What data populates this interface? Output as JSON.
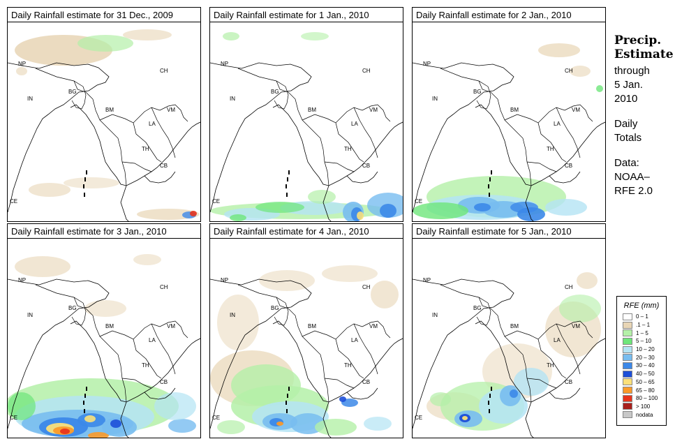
{
  "panels": [
    {
      "title": "Daily Rainfall estimate for  31 Dec., 2009"
    },
    {
      "title": "Daily Rainfall estimate for  1 Jan., 2010"
    },
    {
      "title": "Daily Rainfall estimate for  2 Jan., 2010"
    },
    {
      "title": "Daily Rainfall estimate for  3 Jan., 2010"
    },
    {
      "title": "Daily Rainfall estimate for  4 Jan., 2010"
    },
    {
      "title": "Daily Rainfall estimate for  5 Jan., 2010"
    }
  ],
  "country_labels": {
    "np": "NP",
    "ch": "CH",
    "in": "IN",
    "bg": "BG",
    "bm": "BM",
    "vm": "VM",
    "la": "LA",
    "th": "TH",
    "cb": "CB",
    "ce": "CE"
  },
  "side": {
    "title_line1": "Precip.",
    "title_line2": "Estimate",
    "through": "through",
    "date_line1": "5 Jan.",
    "date_line2": "2010",
    "daily": "Daily",
    "totals": "Totals",
    "data_label": "Data:",
    "source_line1": "NOAA–",
    "source_line2": "RFE 2.0"
  },
  "legend": {
    "title": "RFE (mm)",
    "items": [
      {
        "label": "0 – 1",
        "color": "#ffffff"
      },
      {
        "label": ".1 – 1",
        "color": "#e8d5b5"
      },
      {
        "label": "1 – 5",
        "color": "#b4f0a8"
      },
      {
        "label": "5 – 10",
        "color": "#6ee67a"
      },
      {
        "label": "10 – 20",
        "color": "#b4e4f4"
      },
      {
        "label": "20 – 30",
        "color": "#78bdf0"
      },
      {
        "label": "30 – 40",
        "color": "#3c88e8"
      },
      {
        "label": "40 – 50",
        "color": "#1d4fd8"
      },
      {
        "label": "50 – 65",
        "color": "#fbe07a"
      },
      {
        "label": "65 – 80",
        "color": "#fb9a2a"
      },
      {
        "label": "80 – 100",
        "color": "#e8341c"
      },
      {
        "label": "> 100",
        "color": "#a8201c"
      },
      {
        "label": "nodata",
        "color": "#c8c8c8"
      }
    ]
  }
}
